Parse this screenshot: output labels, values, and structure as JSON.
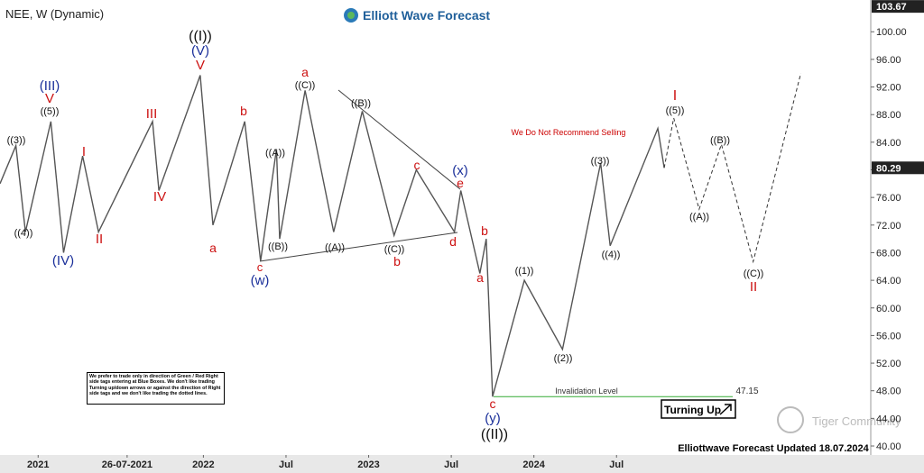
{
  "chart_data": {
    "type": "line",
    "title": "NEE, W (Dynamic)",
    "brand": "Elliott Wave Forecast",
    "note": "We Do Not Recommend Selling",
    "invalidation": {
      "label": "Invalidation Level",
      "value": 47.15
    },
    "turning_label": "Turning Up",
    "disclaimer": "We prefer to trade only in direction of Green / Red Right side tags entering at Blue Boxes. We don't like trading Turning up/down arrows or against the direction of Right side tags and we don't like trading the dotted lines.",
    "footer": "Elliottwave Forecast Updated 18.07.2024",
    "watermark": "Tiger Community",
    "top_price": 103.67,
    "last_price": 80.29,
    "x": [
      -12,
      -7,
      -4,
      4,
      8,
      14,
      19,
      36,
      38,
      51,
      55,
      65,
      70,
      75,
      76,
      84,
      93,
      102,
      112,
      119,
      131,
      133,
      139,
      141,
      143,
      153,
      165,
      177,
      180,
      195,
      197
    ],
    "series": [
      {
        "name": "NEE",
        "color": "#555555",
        "values": [
          78,
          83.5,
          71,
          87,
          68,
          82,
          71,
          87,
          77,
          93.7,
          72,
          87,
          66.8,
          83,
          70,
          91.5,
          71,
          88.5,
          70.5,
          80,
          71,
          77,
          65,
          70,
          47.15,
          64,
          54,
          81,
          69,
          86,
          80.29
        ]
      }
    ],
    "projection": {
      "x": [
        197,
        200,
        208,
        215,
        225,
        240
      ],
      "values": [
        80.29,
        87.5,
        74.3,
        83.7,
        66.7,
        94
      ],
      "color": "#333333"
    },
    "wave_labels": [
      "((3))",
      "((4))",
      "(III)",
      "V",
      "((5))",
      "(IV)",
      "I",
      "II",
      "III",
      "IV",
      "((I))",
      "(V)",
      "V",
      "a",
      "b",
      "c",
      "(w)",
      "((A))",
      "((B))",
      "a",
      "((C))",
      "((A))",
      "((B))",
      "((C))",
      "b",
      "c",
      "d",
      "(x)",
      "e",
      "b",
      "a",
      "((1))",
      "((2))",
      "c",
      "(y)",
      "((II))",
      "((3))",
      "((4))",
      "I",
      "((5))",
      "((A))",
      "((B))",
      "((C))",
      "II"
    ],
    "xlim": [
      -12,
      262
    ],
    "xticks": [
      {
        "value": 0,
        "label": "2021"
      },
      {
        "value": 28,
        "label": "26-07-2021"
      },
      {
        "value": 52,
        "label": "2022"
      },
      {
        "value": 78,
        "label": "Jul"
      },
      {
        "value": 104,
        "label": "2023"
      },
      {
        "value": 130,
        "label": "Jul"
      },
      {
        "value": 156,
        "label": "2024"
      },
      {
        "value": 182,
        "label": "Jul"
      }
    ],
    "ylim": [
      39.35,
      104.6
    ],
    "yticks": [
      {
        "value": 40,
        "label": "40.00"
      },
      {
        "value": 44,
        "label": "44.00"
      },
      {
        "value": 48,
        "label": "48.00"
      },
      {
        "value": 52,
        "label": "52.00"
      },
      {
        "value": 56,
        "label": "56.00"
      },
      {
        "value": 60,
        "label": "60.00"
      },
      {
        "value": 64,
        "label": "64.00"
      },
      {
        "value": 68,
        "label": "68.00"
      },
      {
        "value": 72,
        "label": "72.00"
      },
      {
        "value": 76,
        "label": "76.00"
      },
      {
        "value": 80,
        "label": "80.00"
      },
      {
        "value": 84,
        "label": "84.00"
      },
      {
        "value": 88,
        "label": "88.00"
      },
      {
        "value": 92,
        "label": "92.00"
      },
      {
        "value": 96,
        "label": "96.00"
      },
      {
        "value": 100,
        "label": "100.00"
      }
    ]
  }
}
